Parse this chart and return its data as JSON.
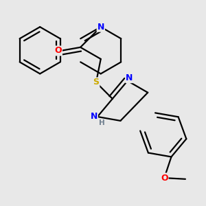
{
  "bg_color": "#e8e8e8",
  "atom_colors": {
    "C": "#000000",
    "N": "#0000ff",
    "O": "#ff0000",
    "S": "#ccaa00",
    "H": "#708090"
  },
  "bond_color": "#000000",
  "bond_width": 1.6,
  "figsize": [
    3.0,
    3.0
  ],
  "dpi": 100,
  "scale": 0.072
}
